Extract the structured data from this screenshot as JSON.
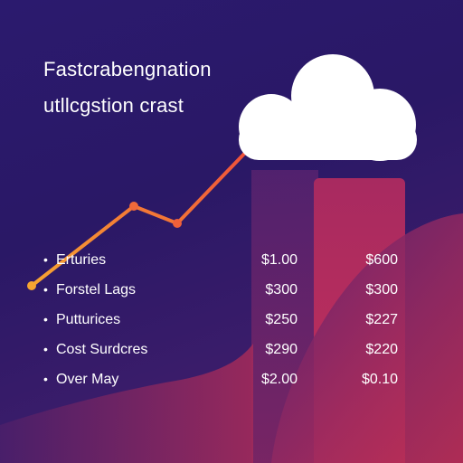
{
  "heading": {
    "line1": "Fastcrabengnation",
    "line2": "utllcgstion crast"
  },
  "illustration": {
    "icon": "cloud-icon",
    "trend_icon": "trend-line-icon",
    "accent_colors": [
      "#f7a531",
      "#f0513a",
      "#e0305a",
      "#8e2463"
    ]
  },
  "rows": [
    {
      "bullet": "•",
      "label": "Erturies",
      "value1": "$1.00",
      "value2": "$600"
    },
    {
      "bullet": "•",
      "label": "Forstel Lags",
      "value1": "$300",
      "value2": "$300"
    },
    {
      "bullet": "•",
      "label": "Putturices",
      "value1": "$250",
      "value2": "$227"
    },
    {
      "bullet": "•",
      "label": "Cost Surdcres",
      "value1": "$290",
      "value2": "$220"
    },
    {
      "bullet": "•",
      "label": "Over May",
      "value1": "$2.00",
      "value2": "$0.10"
    }
  ]
}
